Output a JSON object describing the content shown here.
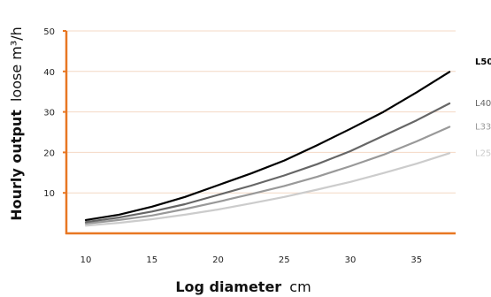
{
  "chart_data": {
    "type": "line",
    "xlabel_bold": "Log diameter",
    "xlabel_unit": "cm",
    "ylabel_bold": "Hourly output",
    "ylabel_unit": "loose m³/h",
    "x_ticks": [
      10,
      15,
      20,
      25,
      30,
      35
    ],
    "y_ticks": [
      10,
      20,
      30,
      40,
      50
    ],
    "xlim": [
      10,
      38
    ],
    "ylim": [
      0,
      50
    ],
    "grid": "horizontal",
    "colors": {
      "axis": "#e87722",
      "grid": "#f4d8c4",
      "L50": "#000000",
      "L40": "#666666",
      "L33": "#999999",
      "L25": "#cccccc"
    },
    "x": [
      10,
      12.5,
      15,
      17.5,
      20,
      22.5,
      25,
      27.5,
      30,
      32.5,
      35,
      37.5
    ],
    "series": [
      {
        "name": "L50",
        "values": [
          3.3,
          4.6,
          6.6,
          9.0,
          11.9,
          14.8,
          18.0,
          21.8,
          25.8,
          30.0,
          34.8,
          39.9
        ]
      },
      {
        "name": "L40",
        "values": [
          2.8,
          3.9,
          5.4,
          7.2,
          9.5,
          11.8,
          14.3,
          17.1,
          20.3,
          24.1,
          27.9,
          32.1
        ]
      },
      {
        "name": "L33",
        "values": [
          2.4,
          3.3,
          4.4,
          6.0,
          7.8,
          9.7,
          11.7,
          14.0,
          16.6,
          19.4,
          22.7,
          26.3
        ]
      },
      {
        "name": "L25",
        "values": [
          1.9,
          2.6,
          3.5,
          4.6,
          5.9,
          7.4,
          9.0,
          10.8,
          12.7,
          14.9,
          17.2,
          19.8
        ]
      }
    ]
  }
}
